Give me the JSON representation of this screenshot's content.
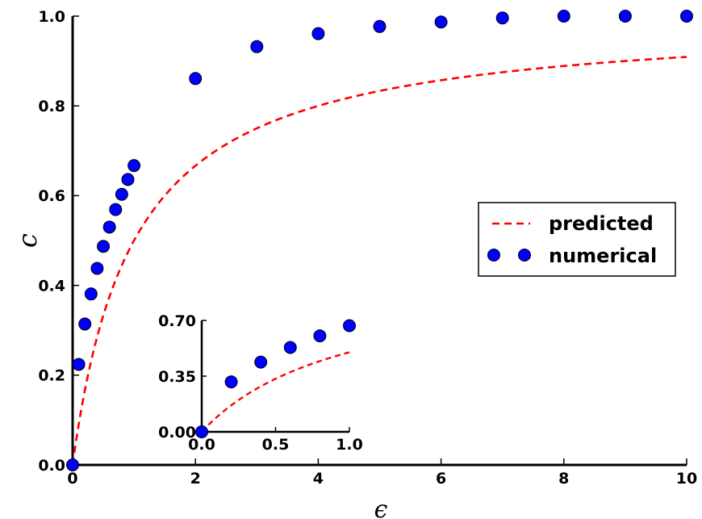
{
  "chart_data": [
    {
      "type": "line+scatter",
      "xlabel": "ϵ",
      "ylabel": "c",
      "xlim": [
        0,
        10
      ],
      "ylim": [
        0,
        1.0
      ],
      "xticks": [
        "0",
        "2",
        "4",
        "6",
        "8",
        "10"
      ],
      "xtick_values": [
        0,
        2,
        4,
        6,
        8,
        10
      ],
      "yticks": [
        "0.0",
        "0.2",
        "0.4",
        "0.6",
        "0.8",
        "1.0"
      ],
      "ytick_values": [
        0,
        0.2,
        0.4,
        0.6,
        0.8,
        1.0
      ],
      "legend": {
        "placement": "right",
        "entries": [
          "predicted",
          "numerical"
        ]
      },
      "series": [
        {
          "name": "predicted",
          "style": "dashed-line",
          "color": "#ff0000",
          "formula": "c = ϵ / (1 + ϵ)"
        },
        {
          "name": "numerical",
          "style": "markers",
          "color": "#0000ff",
          "x": [
            0,
            0.1,
            0.2,
            0.3,
            0.4,
            0.5,
            0.6,
            0.7,
            0.8,
            0.9,
            1.0,
            2,
            3,
            4,
            5,
            6,
            7,
            8,
            9,
            10
          ],
          "y": [
            0.0,
            0.224,
            0.314,
            0.381,
            0.438,
            0.487,
            0.53,
            0.569,
            0.603,
            0.636,
            0.667,
            0.861,
            0.932,
            0.961,
            0.977,
            0.987,
            0.996,
            1.0,
            1.0,
            1.0
          ]
        }
      ]
    },
    {
      "type": "line+scatter",
      "role": "inset",
      "xlim": [
        0,
        1.0
      ],
      "ylim": [
        0,
        0.7
      ],
      "xticks": [
        "0.0",
        "0.5",
        "1.0"
      ],
      "xtick_values": [
        0,
        0.5,
        1.0
      ],
      "yticks": [
        "0.00",
        "0.35",
        "0.70"
      ],
      "ytick_values": [
        0,
        0.35,
        0.7
      ],
      "series": [
        {
          "name": "predicted",
          "style": "dashed-line",
          "color": "#ff0000",
          "formula": "c = ϵ / (1 + ϵ)"
        },
        {
          "name": "numerical",
          "style": "markers",
          "color": "#0000ff",
          "x": [
            0,
            0.2,
            0.4,
            0.6,
            0.8,
            1.0
          ],
          "y": [
            0.0,
            0.314,
            0.438,
            0.53,
            0.603,
            0.667
          ]
        }
      ]
    }
  ]
}
